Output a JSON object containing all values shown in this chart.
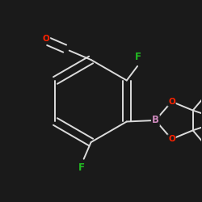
{
  "background_color": "#1a1a1a",
  "bond_color": "#dcdcdc",
  "atom_colors": {
    "F": "#22bb22",
    "O": "#ff2200",
    "B": "#cc88bb",
    "C": "#dcdcdc"
  },
  "bond_width": 1.4,
  "figsize": [
    2.5,
    2.5
  ],
  "dpi": 100,
  "font_size_atom": 8.5
}
